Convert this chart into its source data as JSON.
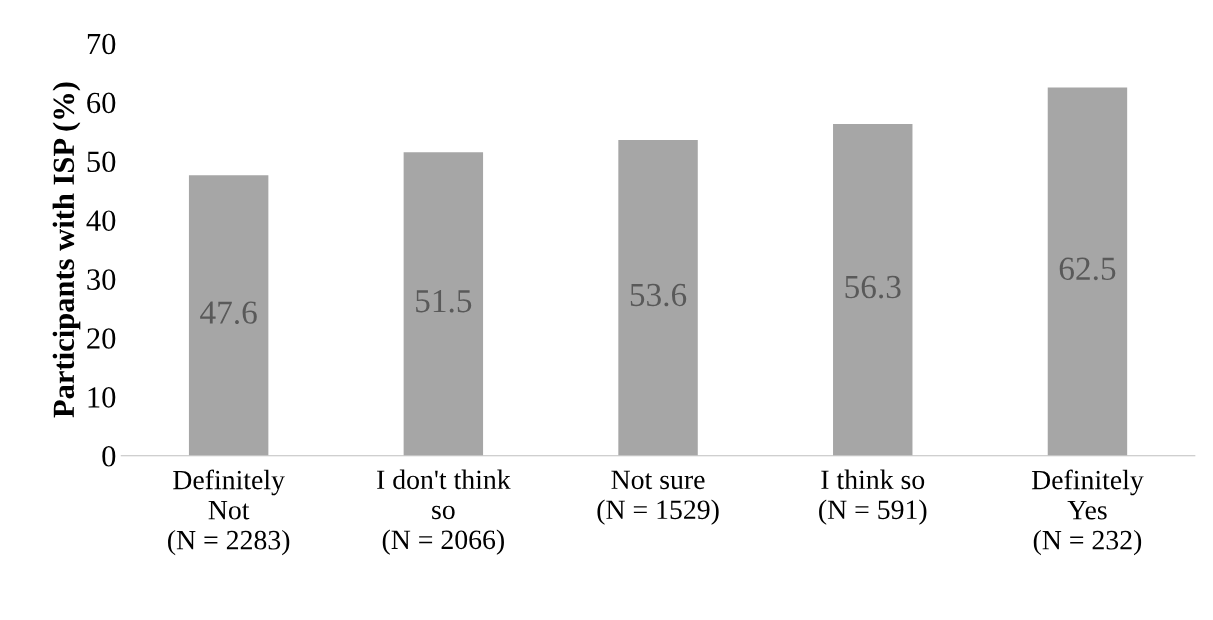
{
  "chart_data": {
    "type": "bar",
    "ylabel": "Participants with ISP (%)",
    "categories": [
      "Definitely\nNot\n(N = 2283)",
      "I don't think\nso\n(N = 2066)",
      "Not sure\n(N = 1529)",
      "I think so\n(N = 591)",
      "Definitely\nYes\n(N = 232)"
    ],
    "values": [
      47.6,
      51.5,
      53.6,
      56.3,
      62.5
    ],
    "color": "#a6a6a6",
    "ylim": [
      0,
      70
    ],
    "yticks": [
      0,
      10,
      20,
      30,
      40,
      50,
      60,
      70
    ],
    "data_labels": true,
    "grid": false,
    "legend": false
  }
}
